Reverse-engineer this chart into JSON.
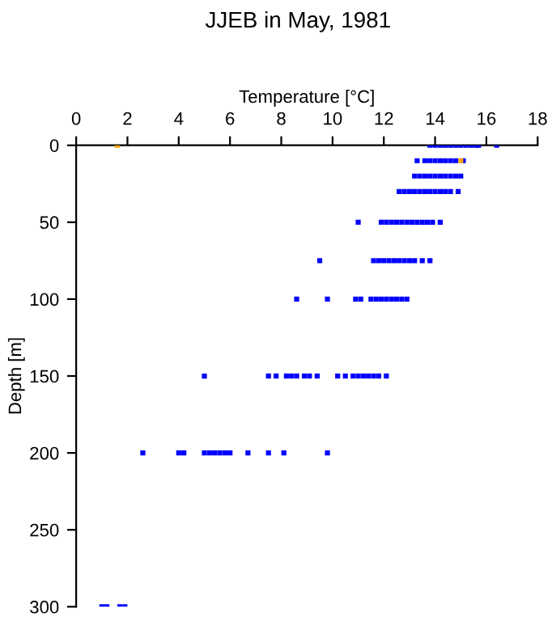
{
  "chart_data": {
    "type": "scatter",
    "title": "JJEB in May, 1981",
    "xlabel": "Temperature [°C]",
    "ylabel": "Depth [m]",
    "xlim": [
      0,
      18
    ],
    "xticks": [
      0,
      2,
      4,
      6,
      8,
      10,
      12,
      14,
      16,
      18
    ],
    "ylim": [
      300,
      0
    ],
    "yticks": [
      0,
      50,
      100,
      150,
      200,
      250,
      300
    ],
    "grid": false,
    "legend": false,
    "marker": "square",
    "series": [
      {
        "color": "#0000ff",
        "x": [
          13.8,
          14.0,
          14.2,
          14.4,
          14.6,
          14.8,
          15.0,
          15.2,
          15.4,
          15.6,
          15.7,
          16.4,
          13.3,
          13.6,
          13.8,
          14.0,
          14.2,
          14.4,
          14.6,
          14.8,
          15.1,
          13.2,
          13.4,
          13.6,
          13.8,
          14.0,
          14.2,
          14.4,
          14.6,
          14.8,
          15.0,
          12.6,
          12.8,
          13.0,
          13.2,
          13.4,
          13.6,
          13.8,
          14.0,
          14.2,
          14.4,
          14.6,
          14.9,
          11.0,
          11.9,
          12.1,
          12.3,
          12.5,
          12.7,
          12.9,
          13.1,
          13.3,
          13.5,
          13.7,
          13.9,
          14.2,
          9.5,
          11.6,
          11.8,
          12.0,
          12.2,
          12.4,
          12.6,
          12.8,
          13.0,
          13.2,
          13.5,
          13.8,
          8.6,
          9.8,
          10.9,
          11.1,
          11.5,
          11.7,
          11.9,
          12.1,
          12.3,
          12.5,
          12.7,
          12.9,
          5.0,
          7.5,
          7.8,
          8.2,
          8.4,
          8.6,
          8.9,
          9.1,
          9.4,
          10.2,
          10.5,
          10.8,
          11.0,
          11.2,
          11.4,
          11.6,
          11.8,
          12.1,
          2.6,
          4.0,
          4.2,
          5.0,
          5.2,
          5.4,
          5.6,
          5.8,
          6.0,
          6.7,
          7.5,
          8.1,
          9.8,
          1.0,
          1.2,
          1.7,
          1.9
        ],
        "values": [
          0,
          0,
          0,
          0,
          0,
          0,
          0,
          0,
          0,
          0,
          0,
          0,
          10,
          10,
          10,
          10,
          10,
          10,
          10,
          10,
          10,
          20,
          20,
          20,
          20,
          20,
          20,
          20,
          20,
          20,
          20,
          30,
          30,
          30,
          30,
          30,
          30,
          30,
          30,
          30,
          30,
          30,
          30,
          50,
          50,
          50,
          50,
          50,
          50,
          50,
          50,
          50,
          50,
          50,
          50,
          50,
          75,
          75,
          75,
          75,
          75,
          75,
          75,
          75,
          75,
          75,
          75,
          75,
          100,
          100,
          100,
          100,
          100,
          100,
          100,
          100,
          100,
          100,
          100,
          100,
          150,
          150,
          150,
          150,
          150,
          150,
          150,
          150,
          150,
          150,
          150,
          150,
          150,
          150,
          150,
          150,
          150,
          150,
          200,
          200,
          200,
          200,
          200,
          200,
          200,
          200,
          200,
          200,
          200,
          200,
          200,
          300,
          300,
          300,
          300
        ]
      },
      {
        "color": "#ffa500",
        "x": [
          1.6,
          15.0
        ],
        "values": [
          0,
          10
        ]
      }
    ]
  }
}
